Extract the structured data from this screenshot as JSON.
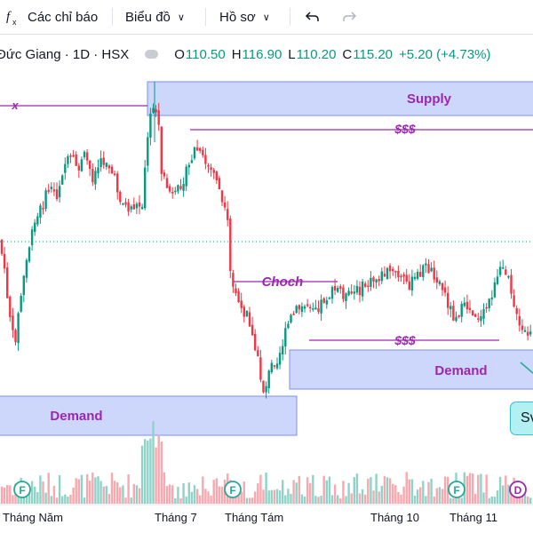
{
  "toolbar": {
    "fx_icon": "fx-icon",
    "indicators_label": "Các chỉ báo",
    "chart_label": "Biểu đồ",
    "profile_label": "Hồ sơ",
    "undo_icon": "undo-icon",
    "redo_icon": "redo-icon"
  },
  "legend": {
    "title": "Đức Giang · 1D · HSX",
    "o_label": "O",
    "o_value": "110.50",
    "h_label": "H",
    "h_value": "116.90",
    "l_label": "L",
    "l_value": "110.20",
    "c_label": "C",
    "c_value": "115.20",
    "change": "+5.20 (+4.73%)"
  },
  "annotations": {
    "supply": "Supply",
    "demand_right": "Demand",
    "demand_left": "Demand",
    "x_label": "x",
    "liquidity_top": "$$$",
    "liquidity_mid": "$$$",
    "choch": "Choch"
  },
  "side_button": "Sv",
  "x_axis": {
    "labels": [
      "Tháng Năm",
      "Tháng 7",
      "Tháng Tám",
      "Tháng 10",
      "Tháng 11"
    ]
  },
  "event_markers": [
    "F",
    "F",
    "F",
    "D"
  ],
  "colors": {
    "up": "#089981",
    "down": "#f23645",
    "zone_fill": "#cdd7fb",
    "zone_border": "#7b8ff0",
    "annotation": "#9c27b0",
    "dotted_line": "#089981",
    "event_green": "#22ab94",
    "event_purple": "#9c27b0"
  }
}
